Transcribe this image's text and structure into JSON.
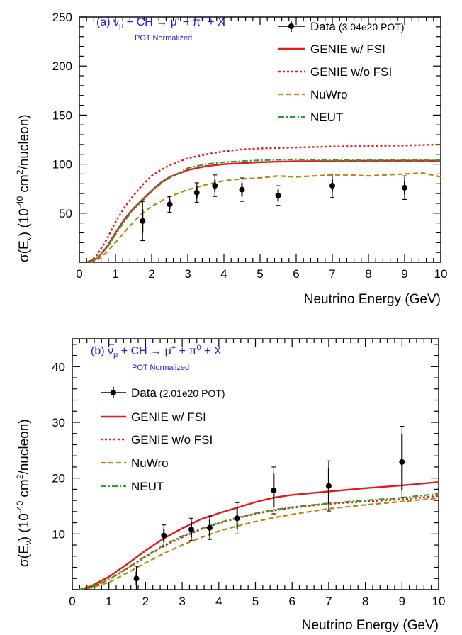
{
  "chart_data": [
    {
      "type": "line",
      "panel": "a",
      "title": "(a) ν_μ + CH → μ⁻ + π± + X",
      "title_parts": {
        "prefix": "(a) ν",
        "nu_sub": "μ",
        "mid": " + CH → μ",
        "mu_sup": "-",
        "mid2": " + π",
        "pi_sup": "±",
        "suffix": " + X"
      },
      "subtitle": "POT Normalized",
      "xlabel": "Neutrino Energy (GeV)",
      "ylabel_parts": {
        "a": "σ(E",
        "sub": "ν",
        "b": ") (10",
        "sup1": "-40",
        "c": " cm",
        "sup2": "2",
        "d": "/nucleon)"
      },
      "xlim": [
        0,
        10
      ],
      "ylim": [
        0,
        250
      ],
      "xticks": [
        "0",
        "1",
        "2",
        "3",
        "4",
        "5",
        "6",
        "7",
        "8",
        "9",
        "10"
      ],
      "yticks": [
        50,
        100,
        150,
        200,
        250
      ],
      "legend_position": "top-right",
      "data": {
        "name": "Data",
        "note": "(3.04e20 POT)",
        "x": [
          1.75,
          2.5,
          3.25,
          3.75,
          4.5,
          5.5,
          7.0,
          9.0
        ],
        "y": [
          42,
          59,
          71,
          78,
          74,
          68,
          78,
          76
        ],
        "err_stat": [
          12,
          5,
          6,
          6,
          7,
          6,
          6,
          7
        ],
        "err_total": [
          20,
          8,
          10,
          11,
          12,
          10,
          12,
          12
        ]
      },
      "series": [
        {
          "name": "GENIE w/ FSI",
          "color": "#e41a1c",
          "style": "solid",
          "x": [
            0.2,
            0.5,
            0.75,
            1.0,
            1.25,
            1.5,
            1.75,
            2.0,
            2.25,
            2.5,
            3.0,
            3.5,
            4.0,
            4.5,
            5.0,
            6.0,
            7.0,
            8.0,
            9.0,
            10.0
          ],
          "y": [
            0,
            4,
            15,
            30,
            44,
            55,
            64,
            73,
            81,
            87,
            94,
            98,
            100,
            101,
            102,
            103,
            103,
            103.5,
            103.5,
            103.5
          ]
        },
        {
          "name": "GENIE w/o FSI",
          "color": "#e41a1c",
          "style": "dotted",
          "x": [
            0.3,
            0.5,
            0.75,
            1.0,
            1.25,
            1.5,
            1.75,
            2.0,
            2.25,
            2.5,
            3.0,
            3.5,
            4.0,
            4.5,
            5.0,
            6.0,
            7.0,
            8.0,
            9.0,
            10.0
          ],
          "y": [
            0,
            8,
            23,
            41,
            56,
            68,
            79,
            88,
            94,
            99,
            106,
            110,
            113,
            115,
            116,
            117,
            118,
            118.5,
            119,
            120
          ]
        },
        {
          "name": "NuWro",
          "color": "#b8860b",
          "style": "dashed",
          "x": [
            0.3,
            0.5,
            0.75,
            1.0,
            1.25,
            1.5,
            1.75,
            2.0,
            2.5,
            3.0,
            3.5,
            4.0,
            4.5,
            5.0,
            5.5,
            6.0,
            6.5,
            7.0,
            7.5,
            8.0,
            8.5,
            9.0,
            9.5,
            10.0
          ],
          "y": [
            0,
            2,
            10,
            20,
            31,
            41,
            50,
            57,
            67,
            74,
            79,
            83,
            85,
            86,
            88,
            87,
            88,
            89,
            89,
            88,
            89,
            90,
            91,
            87
          ]
        },
        {
          "name": "NEUT",
          "color": "#2ca02c",
          "style": "dashdot",
          "x": [
            0.3,
            0.5,
            0.75,
            1.0,
            1.25,
            1.5,
            1.75,
            2.0,
            2.25,
            2.5,
            3.0,
            3.5,
            4.0,
            4.5,
            5.0,
            6.0,
            7.0,
            8.0,
            9.0,
            10.0
          ],
          "y": [
            0,
            4,
            14,
            28,
            42,
            54,
            63,
            72,
            80,
            86,
            96,
            100,
            102,
            103,
            104,
            105,
            104,
            104,
            104,
            104
          ]
        }
      ]
    },
    {
      "type": "line",
      "panel": "b",
      "title": "(b) ν̄_μ + CH → μ⁺ + π⁰ + X",
      "title_parts": {
        "prefix": "(b) ",
        "nu": "ν",
        "nu_sub": "μ",
        "mid": " + CH → μ",
        "mu_sup": "+",
        "mid2": " + π",
        "pi_sup": "0",
        "suffix": " + X"
      },
      "subtitle": "POT Normalized",
      "xlabel": "Neutrino Energy (GeV)",
      "ylabel_parts": {
        "a": "σ(E",
        "sub": "ν",
        "b": ") (10",
        "sup1": "-40",
        "c": " cm",
        "sup2": "2",
        "d": "/nucleon)"
      },
      "xlim": [
        0,
        10
      ],
      "ylim": [
        0,
        45
      ],
      "xticks": [
        "0",
        "1",
        "2",
        "3",
        "4",
        "5",
        "6",
        "7",
        "8",
        "9",
        "10"
      ],
      "yticks": [
        10,
        20,
        30,
        40
      ],
      "legend_position": "top-left",
      "data": {
        "name": "Data",
        "note": "(2.01e20 POT)",
        "x": [
          1.75,
          2.5,
          3.25,
          3.75,
          4.5,
          5.5,
          7.0,
          9.0
        ],
        "y": [
          2.0,
          9.7,
          10.8,
          11.1,
          12.8,
          17.8,
          18.6,
          22.9
        ],
        "err_stat": [
          1.2,
          1.2,
          1.4,
          1.4,
          1.9,
          3.0,
          3.2,
          5.0
        ],
        "err_total": [
          2.2,
          1.9,
          2.0,
          2.1,
          2.8,
          4.2,
          4.5,
          6.4
        ]
      },
      "series": [
        {
          "name": "GENIE w/ FSI",
          "color": "#e41a1c",
          "style": "solid",
          "x": [
            0.2,
            0.5,
            1.0,
            1.5,
            2.0,
            2.5,
            3.0,
            3.5,
            4.0,
            4.5,
            5.0,
            5.5,
            6.0,
            7.0,
            8.0,
            9.0,
            10.0
          ],
          "y": [
            0,
            0.6,
            2.3,
            4.6,
            7.0,
            9.2,
            11.0,
            12.6,
            13.7,
            14.7,
            15.7,
            16.5,
            17.0,
            17.6,
            18.2,
            18.7,
            19.3
          ]
        },
        {
          "name": "GENIE w/o FSI",
          "color": "#e41a1c",
          "style": "dotted",
          "x": [
            0.2,
            0.5,
            1.0,
            1.5,
            2.0,
            2.5,
            3.0,
            3.5,
            4.0,
            4.5,
            5.0,
            5.5,
            6.0,
            7.0,
            8.0,
            9.0,
            10.0
          ],
          "y": [
            0,
            0.4,
            1.8,
            3.8,
            5.9,
            7.8,
            9.4,
            10.8,
            11.9,
            12.8,
            13.6,
            14.2,
            14.7,
            15.4,
            15.8,
            16.2,
            16.8
          ]
        },
        {
          "name": "NuWro",
          "color": "#b8860b",
          "style": "dashed",
          "x": [
            0.2,
            0.5,
            1.0,
            1.5,
            2.0,
            2.5,
            3.0,
            3.5,
            4.0,
            4.5,
            5.0,
            5.5,
            6.0,
            7.0,
            8.0,
            9.0,
            10.0
          ],
          "y": [
            0,
            0.3,
            1.3,
            3.0,
            4.8,
            6.5,
            8.0,
            9.3,
            10.5,
            11.4,
            12.2,
            12.9,
            13.5,
            14.5,
            15.2,
            15.8,
            16.4
          ]
        },
        {
          "name": "NEUT",
          "color": "#2ca02c",
          "style": "dashdot",
          "x": [
            0.2,
            0.5,
            1.0,
            1.5,
            2.0,
            2.5,
            3.0,
            3.5,
            4.0,
            4.5,
            5.0,
            5.5,
            6.0,
            7.0,
            8.0,
            9.0,
            10.0
          ],
          "y": [
            0,
            0.4,
            1.8,
            3.9,
            6.0,
            8.0,
            9.6,
            10.9,
            12.0,
            12.9,
            13.7,
            14.3,
            14.8,
            15.5,
            16.0,
            16.5,
            17.2
          ]
        }
      ]
    }
  ]
}
